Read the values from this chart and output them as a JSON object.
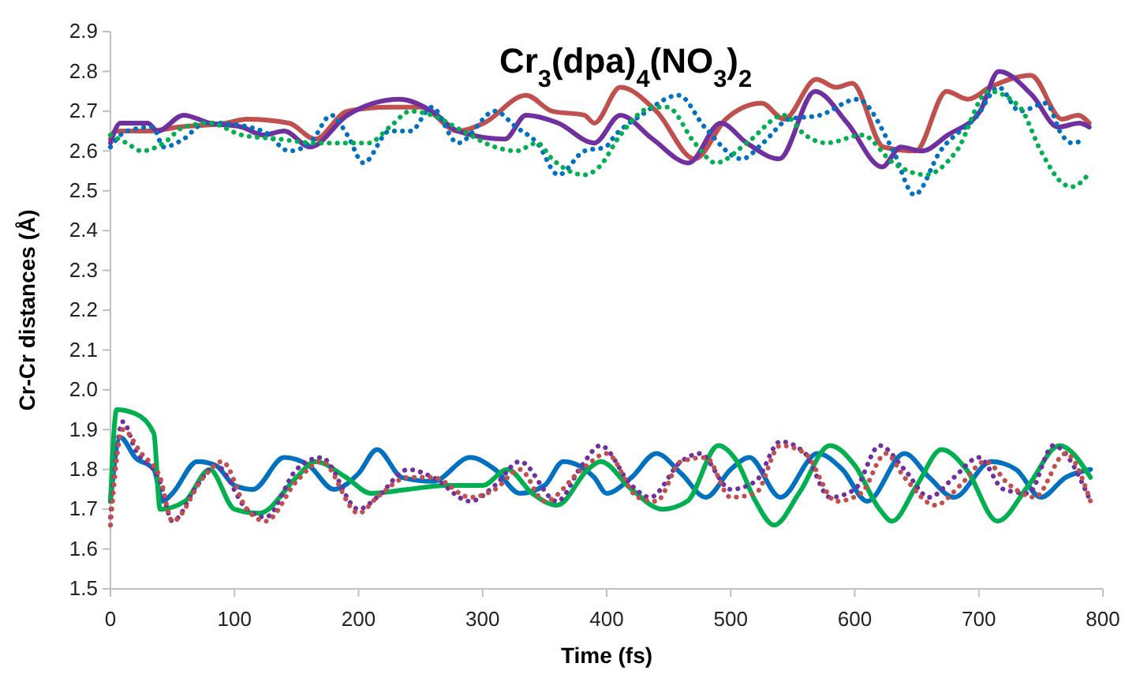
{
  "chart_data": {
    "type": "line",
    "title": "Cr$_{3}$(dpa)$_{4}$(NO$_{3}$)$_{2}$",
    "xlabel": "Time (fs)",
    "ylabel": "Cr-Cr distances (Å)",
    "xlim": [
      0,
      800
    ],
    "xticks": [
      0,
      100,
      200,
      300,
      400,
      500,
      600,
      700,
      800
    ],
    "ylim": [
      1.5,
      2.9
    ],
    "yticks": [
      1.5,
      1.6,
      1.7,
      1.8,
      1.9,
      {
        "value": 2,
        "label": "2.0"
      },
      2.1,
      2.2,
      2.3,
      2.4,
      2.5,
      2.6,
      2.7,
      2.8,
      2.9
    ],
    "marker": "none",
    "series": [
      {
        "color": "#c0504d",
        "line_style": "solid",
        "x": [
          0,
          4,
          30,
          55,
          93,
          110,
          144,
          165,
          191,
          225,
          250,
          280,
          301,
          335,
          356,
          382,
          390,
          411,
          440,
          471,
          496,
          525,
          543,
          569,
          585,
          598,
          623,
          649,
          674,
          691,
          709,
          742,
          767,
          780,
          789
        ],
        "values": [
          2.63,
          2.65,
          2.65,
          2.66,
          2.67,
          2.68,
          2.67,
          2.63,
          2.7,
          2.71,
          2.71,
          2.65,
          2.67,
          2.74,
          2.7,
          2.69,
          2.67,
          2.76,
          2.7,
          2.58,
          2.68,
          2.72,
          2.68,
          2.78,
          2.76,
          2.77,
          2.61,
          2.6,
          2.75,
          2.73,
          2.76,
          2.79,
          2.68,
          2.69,
          2.67
        ]
      },
      {
        "color": "#7030a0",
        "line_style": "solid",
        "x": [
          0,
          8,
          30,
          38,
          59,
          80,
          106,
          123,
          140,
          161,
          191,
          233,
          259,
          280,
          318,
          335,
          361,
          390,
          411,
          437,
          466,
          492,
          513,
          539,
          568,
          594,
          622,
          637,
          654,
          675,
          701,
          716,
          743,
          764,
          781,
          789
        ],
        "values": [
          2.62,
          2.67,
          2.67,
          2.65,
          2.69,
          2.67,
          2.66,
          2.64,
          2.65,
          2.61,
          2.69,
          2.73,
          2.7,
          2.65,
          2.63,
          2.69,
          2.67,
          2.62,
          2.69,
          2.63,
          2.57,
          2.67,
          2.62,
          2.58,
          2.75,
          2.67,
          2.56,
          2.61,
          2.6,
          2.64,
          2.7,
          2.8,
          2.74,
          2.66,
          2.67,
          2.66
        ]
      },
      {
        "color": "#0070c0",
        "line_style": "dotted",
        "x": [
          0,
          13,
          34,
          43,
          59,
          76,
          85,
          123,
          144,
          161,
          178,
          191,
          204,
          225,
          242,
          259,
          280,
          310,
          327,
          344,
          361,
          382,
          399,
          407,
          428,
          458,
          479,
          509,
          526,
          547,
          572,
          602,
          631,
          648,
          669,
          699,
          716,
          733,
          754,
          767,
          775,
          786
        ],
        "values": [
          2.61,
          2.65,
          2.66,
          2.61,
          2.63,
          2.67,
          2.67,
          2.65,
          2.6,
          2.62,
          2.69,
          2.64,
          2.57,
          2.65,
          2.65,
          2.71,
          2.62,
          2.7,
          2.66,
          2.62,
          2.54,
          2.6,
          2.61,
          2.64,
          2.69,
          2.74,
          2.66,
          2.58,
          2.62,
          2.68,
          2.69,
          2.73,
          2.6,
          2.49,
          2.6,
          2.69,
          2.76,
          2.7,
          2.72,
          2.64,
          2.62,
          2.63
        ]
      },
      {
        "color": "#00b050",
        "line_style": "dotted",
        "x": [
          0,
          13,
          25,
          43,
          59,
          80,
          106,
          136,
          165,
          191,
          208,
          225,
          242,
          259,
          284,
          310,
          327,
          344,
          356,
          382,
          394,
          411,
          437,
          449,
          471,
          488,
          513,
          543,
          560,
          577,
          606,
          631,
          657,
          682,
          708,
          733,
          750,
          767,
          775,
          788
        ],
        "values": [
          2.64,
          2.62,
          2.6,
          2.62,
          2.66,
          2.67,
          2.64,
          2.63,
          2.62,
          2.62,
          2.62,
          2.66,
          2.7,
          2.69,
          2.65,
          2.61,
          2.6,
          2.62,
          2.58,
          2.54,
          2.56,
          2.64,
          2.71,
          2.71,
          2.62,
          2.57,
          2.62,
          2.69,
          2.64,
          2.62,
          2.64,
          2.57,
          2.54,
          2.6,
          2.75,
          2.71,
          2.6,
          2.52,
          2.51,
          2.54
        ]
      },
      {
        "color": "#0070c0",
        "line_style": "solid",
        "x": [
          0,
          8,
          20,
          35,
          42,
          50,
          70,
          85,
          100,
          115,
          140,
          160,
          180,
          200,
          215,
          235,
          260,
          290,
          310,
          330,
          350,
          365,
          390,
          400,
          420,
          440,
          460,
          480,
          500,
          515,
          540,
          570,
          590,
          610,
          640,
          660,
          680,
          710,
          730,
          750,
          770,
          790
        ],
        "values": [
          1.72,
          1.88,
          1.83,
          1.8,
          1.72,
          1.74,
          1.82,
          1.81,
          1.76,
          1.75,
          1.83,
          1.81,
          1.75,
          1.79,
          1.85,
          1.78,
          1.77,
          1.83,
          1.8,
          1.74,
          1.76,
          1.82,
          1.78,
          1.74,
          1.78,
          1.84,
          1.79,
          1.73,
          1.8,
          1.83,
          1.73,
          1.84,
          1.8,
          1.72,
          1.84,
          1.78,
          1.73,
          1.82,
          1.8,
          1.73,
          1.78,
          1.8
        ]
      },
      {
        "color": "#00b050",
        "line_style": "solid",
        "x": [
          0,
          5,
          20,
          35,
          40,
          60,
          80,
          100,
          120,
          150,
          165,
          190,
          210,
          240,
          270,
          300,
          320,
          340,
          360,
          385,
          395,
          420,
          445,
          465,
          490,
          505,
          520,
          535,
          555,
          580,
          600,
          620,
          630,
          650,
          670,
          690,
          715,
          740,
          765,
          790
        ],
        "values": [
          1.72,
          1.95,
          1.94,
          1.89,
          1.7,
          1.72,
          1.8,
          1.7,
          1.69,
          1.78,
          1.82,
          1.78,
          1.74,
          1.75,
          1.76,
          1.76,
          1.8,
          1.74,
          1.71,
          1.8,
          1.82,
          1.75,
          1.7,
          1.72,
          1.86,
          1.82,
          1.72,
          1.66,
          1.74,
          1.86,
          1.81,
          1.7,
          1.67,
          1.76,
          1.85,
          1.8,
          1.67,
          1.76,
          1.86,
          1.78
        ]
      },
      {
        "color": "#7030a0",
        "line_style": "dotted",
        "x": [
          0,
          10,
          20,
          40,
          50,
          70,
          85,
          110,
          125,
          150,
          170,
          200,
          215,
          240,
          260,
          290,
          310,
          330,
          360,
          380,
          395,
          420,
          435,
          460,
          475,
          500,
          520,
          540,
          560,
          580,
          600,
          620,
          640,
          660,
          680,
          700,
          720,
          740,
          760,
          790
        ],
        "values": [
          1.68,
          1.92,
          1.85,
          1.77,
          1.67,
          1.76,
          1.81,
          1.7,
          1.68,
          1.8,
          1.83,
          1.7,
          1.73,
          1.8,
          1.78,
          1.72,
          1.76,
          1.82,
          1.72,
          1.81,
          1.86,
          1.76,
          1.73,
          1.82,
          1.84,
          1.75,
          1.77,
          1.87,
          1.84,
          1.73,
          1.75,
          1.86,
          1.8,
          1.73,
          1.78,
          1.83,
          1.75,
          1.74,
          1.86,
          1.72
        ]
      },
      {
        "color": "#c0504d",
        "line_style": "dotted",
        "x": [
          0,
          10,
          25,
          40,
          50,
          75,
          90,
          110,
          125,
          150,
          170,
          200,
          215,
          240,
          260,
          290,
          310,
          330,
          350,
          380,
          400,
          425,
          440,
          460,
          480,
          500,
          520,
          540,
          560,
          585,
          605,
          625,
          640,
          665,
          685,
          705,
          725,
          745,
          770,
          790
        ],
        "values": [
          1.66,
          1.9,
          1.84,
          1.78,
          1.67,
          1.78,
          1.82,
          1.7,
          1.67,
          1.77,
          1.82,
          1.69,
          1.73,
          1.78,
          1.78,
          1.73,
          1.75,
          1.8,
          1.72,
          1.8,
          1.84,
          1.73,
          1.72,
          1.82,
          1.83,
          1.73,
          1.74,
          1.86,
          1.84,
          1.72,
          1.74,
          1.84,
          1.78,
          1.71,
          1.76,
          1.82,
          1.76,
          1.73,
          1.84,
          1.72
        ]
      }
    ]
  }
}
